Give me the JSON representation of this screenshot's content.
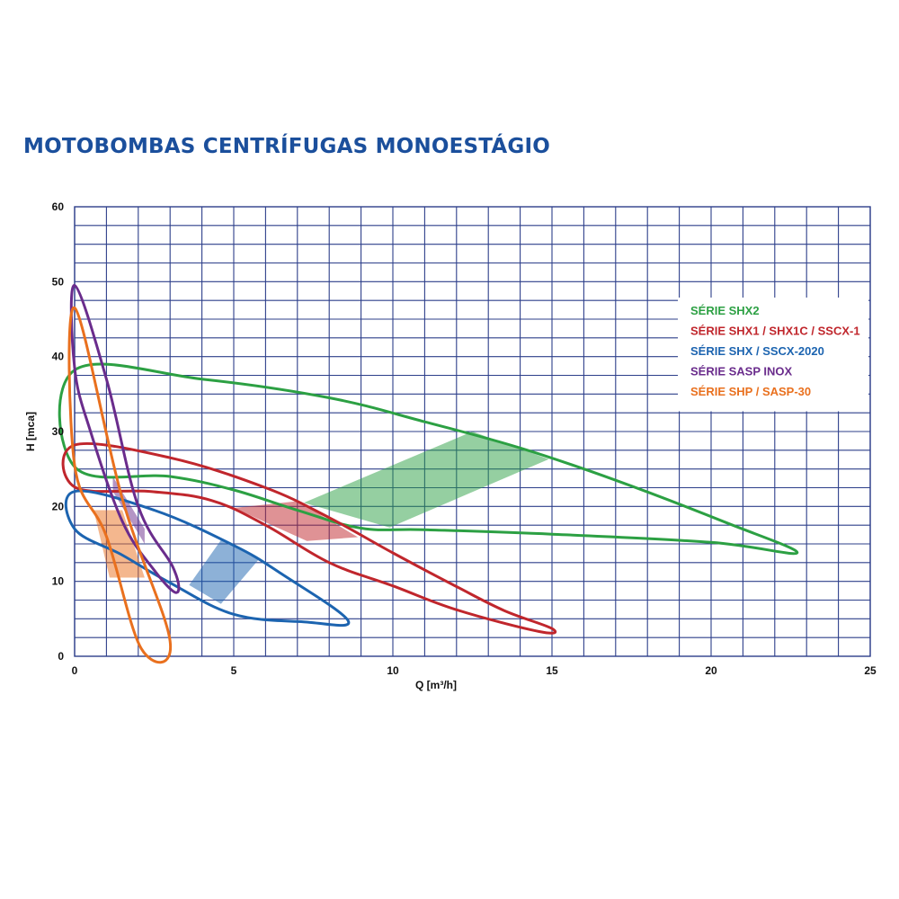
{
  "title": "MOTOBOMBAS CENTRÍFUGAS MONOESTÁGIO",
  "chart_data": {
    "type": "line",
    "title": "MOTOBOMBAS CENTRÍFUGAS MONOESTÁGIO",
    "xlabel": "Q [m³/h]",
    "ylabel": "H [mca]",
    "xlim": [
      0,
      25
    ],
    "ylim": [
      0,
      60
    ],
    "xticks": [
      0,
      5,
      10,
      15,
      20,
      25
    ],
    "yticks": [
      0,
      10,
      20,
      30,
      40,
      50,
      60
    ],
    "grid": true,
    "legend_position": "right",
    "series": [
      {
        "name": "SÉRIE SHX2",
        "color": "#2ca043",
        "outline": [
          [
            0,
            38.2
          ],
          [
            4,
            37
          ],
          [
            8,
            34.5
          ],
          [
            11,
            31.3
          ],
          [
            14,
            27.8
          ],
          [
            17,
            23.5
          ],
          [
            20.5,
            17.8
          ],
          [
            22.7,
            13.8
          ],
          [
            20,
            15.2
          ],
          [
            15,
            16.3
          ],
          [
            11,
            16.9
          ],
          [
            9,
            17.1
          ],
          [
            7,
            19.5
          ],
          [
            5,
            22.2
          ],
          [
            3,
            24
          ],
          [
            0,
            25.3
          ]
        ],
        "zone": [
          [
            7.2,
            20.5
          ],
          [
            12.5,
            30
          ],
          [
            14.9,
            26.3
          ],
          [
            9.9,
            17.2
          ]
        ]
      },
      {
        "name": "SÉRIE SHX1 / SHX1C / SSCX-1",
        "color": "#c0262c",
        "outline": [
          [
            0,
            28.2
          ],
          [
            3,
            26.5
          ],
          [
            6,
            22.5
          ],
          [
            8,
            18.5
          ],
          [
            10,
            13.8
          ],
          [
            12,
            9.3
          ],
          [
            13.5,
            6.1
          ],
          [
            15,
            3.7
          ],
          [
            14.6,
            3.3
          ],
          [
            12,
            6.2
          ],
          [
            10,
            9.4
          ],
          [
            8,
            12.5
          ],
          [
            6,
            17.5
          ],
          [
            4.3,
            20.8
          ],
          [
            2.4,
            22
          ],
          [
            0,
            22.6
          ]
        ],
        "zone": [
          [
            5,
            19.8
          ],
          [
            7,
            20.7
          ],
          [
            8.9,
            15.9
          ],
          [
            7.3,
            15.4
          ]
        ]
      },
      {
        "name": "SÉRIE SHX / SSCX-2020",
        "color": "#1c64b0",
        "outline": [
          [
            0,
            22
          ],
          [
            2.5,
            19.5
          ],
          [
            5,
            14.8
          ],
          [
            6.5,
            11
          ],
          [
            8.6,
            4.7
          ],
          [
            7.2,
            4.6
          ],
          [
            5,
            5.6
          ],
          [
            3,
            9.8
          ],
          [
            1.5,
            13.5
          ],
          [
            0,
            17
          ]
        ],
        "zone": [
          [
            3.6,
            9.5
          ],
          [
            4.6,
            15.5
          ],
          [
            5.8,
            13
          ],
          [
            4.6,
            7
          ]
        ]
      },
      {
        "name": "SÉRIE SASP INOX",
        "color": "#6a2c8c",
        "outline": [
          [
            0,
            49.5
          ],
          [
            1,
            37
          ],
          [
            2,
            20
          ],
          [
            3.1,
            11.8
          ],
          [
            3.2,
            8.5
          ],
          [
            2.5,
            11.5
          ],
          [
            1.5,
            18
          ],
          [
            0.5,
            30
          ],
          [
            0,
            38.5
          ]
        ],
        "zone": [
          [
            1.2,
            24
          ],
          [
            2.2,
            17
          ],
          [
            2.2,
            15
          ],
          [
            1.2,
            22
          ]
        ]
      },
      {
        "name": "SÉRIE SHP / SASP-30",
        "color": "#e9701e",
        "outline": [
          [
            0,
            46.5
          ],
          [
            1.5,
            21
          ],
          [
            3,
            2
          ],
          [
            2.1,
            1
          ],
          [
            1,
            16
          ],
          [
            0,
            25.5
          ]
        ],
        "zone": [
          [
            0.6,
            19.5
          ],
          [
            1.5,
            19.5
          ],
          [
            2.2,
            10.5
          ],
          [
            1.1,
            10.5
          ]
        ]
      }
    ]
  }
}
